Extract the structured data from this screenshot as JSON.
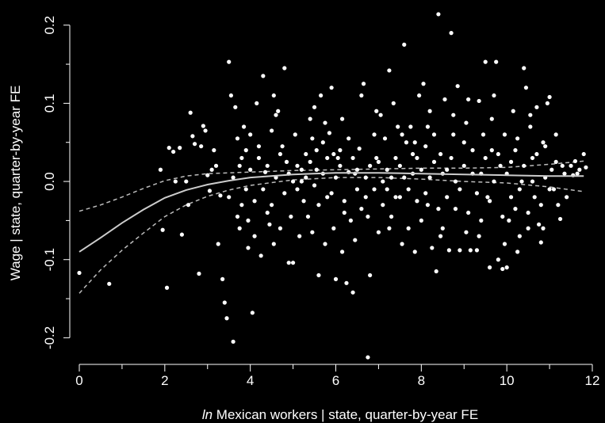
{
  "chart_data": {
    "type": "scatter",
    "title": "",
    "xlabel_italic": "ln",
    "xlabel_rest": " Mexican workers | state, quarter-by-year FE",
    "ylabel": "Wage | state, quarter-by-year FE",
    "xlim": [
      0,
      12
    ],
    "ylim": [
      -0.23,
      0.22
    ],
    "x_ticks": [
      0,
      2,
      4,
      6,
      8,
      10,
      12
    ],
    "x_tick_labels": [
      "0",
      "2",
      "4",
      "6",
      "8",
      "10",
      "12"
    ],
    "x_minor_ticks": [
      1,
      3,
      5,
      7,
      9,
      11
    ],
    "y_ticks": [
      -0.2,
      -0.1,
      0.0,
      0.1,
      0.2
    ],
    "y_tick_labels": [
      "-0.2",
      "-0.1",
      "0.0",
      "0.1",
      "0.2"
    ],
    "colors": {
      "background": "#000000",
      "points": "#ffffff",
      "fit": "#cccccc",
      "band": "#bbbbbb"
    },
    "fit": {
      "x": [
        0,
        0.5,
        1,
        1.5,
        2,
        2.5,
        3,
        3.5,
        4,
        5,
        6,
        7,
        8,
        9,
        10,
        11,
        11.8
      ],
      "y": [
        -0.09,
        -0.072,
        -0.053,
        -0.036,
        -0.021,
        -0.011,
        -0.004,
        0.001,
        0.005,
        0.009,
        0.011,
        0.011,
        0.01,
        0.009,
        0.008,
        0.007,
        0.007
      ]
    },
    "ci_upper": {
      "x": [
        0,
        0.5,
        1,
        1.5,
        2,
        2.5,
        3,
        3.5,
        4,
        5,
        6,
        7,
        8,
        9,
        10,
        11,
        11.8
      ],
      "y": [
        -0.038,
        -0.03,
        -0.02,
        -0.009,
        0.001,
        0.007,
        0.01,
        0.011,
        0.012,
        0.014,
        0.015,
        0.016,
        0.017,
        0.017,
        0.018,
        0.022,
        0.026
      ]
    },
    "ci_lower": {
      "x": [
        0,
        0.5,
        1,
        1.5,
        2,
        2.5,
        3,
        3.5,
        4,
        5,
        6,
        7,
        8,
        9,
        10,
        11,
        11.8
      ],
      "y": [
        -0.143,
        -0.113,
        -0.088,
        -0.066,
        -0.045,
        -0.03,
        -0.019,
        -0.011,
        -0.005,
        0.002,
        0.005,
        0.005,
        0.003,
        0.0,
        -0.002,
        -0.007,
        -0.013
      ]
    },
    "points": [
      [
        0.0,
        -0.117
      ],
      [
        0.7,
        -0.131
      ],
      [
        2.05,
        -0.136
      ],
      [
        2.1,
        0.043
      ],
      [
        2.2,
        0.038
      ],
      [
        2.35,
        0.043
      ],
      [
        2.4,
        -0.068
      ],
      [
        2.5,
        0.0
      ],
      [
        2.6,
        0.088
      ],
      [
        2.65,
        0.058
      ],
      [
        2.7,
        0.048
      ],
      [
        2.8,
        -0.118
      ],
      [
        2.85,
        0.045
      ],
      [
        2.9,
        0.071
      ],
      [
        2.95,
        0.065
      ],
      [
        3.0,
        0.008
      ],
      [
        3.05,
        -0.012
      ],
      [
        3.1,
        0.015
      ],
      [
        3.2,
        0.02
      ],
      [
        3.3,
        -0.018
      ],
      [
        3.35,
        -0.125
      ],
      [
        3.4,
        -0.155
      ],
      [
        3.45,
        -0.175
      ],
      [
        3.5,
        0.153
      ],
      [
        3.55,
        0.11
      ],
      [
        3.6,
        -0.205
      ],
      [
        3.65,
        0.095
      ],
      [
        3.7,
        0.055
      ],
      [
        3.75,
        0.02
      ],
      [
        3.8,
        -0.03
      ],
      [
        3.85,
        0.07
      ],
      [
        3.9,
        0.04
      ],
      [
        3.95,
        -0.05
      ],
      [
        4.0,
        0.06
      ],
      [
        4.05,
        -0.168
      ],
      [
        4.1,
        -0.07
      ],
      [
        4.15,
        0.1
      ],
      [
        4.2,
        0.03
      ],
      [
        4.3,
        0.135
      ],
      [
        4.35,
        0.012
      ],
      [
        4.4,
        -0.04
      ],
      [
        4.5,
        0.065
      ],
      [
        4.55,
        0.11
      ],
      [
        4.6,
        0.085
      ],
      [
        4.7,
        -0.06
      ],
      [
        4.75,
        0.045
      ],
      [
        4.8,
        0.145
      ],
      [
        4.85,
        0.025
      ],
      [
        4.9,
        -0.104
      ],
      [
        5.0,
        -0.104
      ],
      [
        5.05,
        0.06
      ],
      [
        5.1,
        0.02
      ],
      [
        5.2,
        0.0
      ],
      [
        5.3,
        0.035
      ],
      [
        5.35,
        -0.045
      ],
      [
        5.4,
        0.08
      ],
      [
        5.45,
        -0.065
      ],
      [
        5.5,
        0.095
      ],
      [
        5.55,
        0.015
      ],
      [
        5.6,
        -0.12
      ],
      [
        5.65,
        0.11
      ],
      [
        5.7,
        0.05
      ],
      [
        5.75,
        0.075
      ],
      [
        5.8,
        -0.02
      ],
      [
        5.85,
        0.062
      ],
      [
        5.9,
        0.12
      ],
      [
        5.95,
        0.035
      ],
      [
        6.0,
        -0.125
      ],
      [
        6.05,
        0.03
      ],
      [
        6.1,
        0.04
      ],
      [
        6.15,
        0.08
      ],
      [
        6.2,
        -0.04
      ],
      [
        6.25,
        -0.13
      ],
      [
        6.3,
        0.055
      ],
      [
        6.4,
        -0.142
      ],
      [
        6.45,
        0.01
      ],
      [
        6.5,
        -0.01
      ],
      [
        6.55,
        0.042
      ],
      [
        6.6,
        0.11
      ],
      [
        6.65,
        0.125
      ],
      [
        6.7,
        -0.02
      ],
      [
        6.75,
        -0.225
      ],
      [
        6.8,
        -0.12
      ],
      [
        6.9,
        0.06
      ],
      [
        6.95,
        0.03
      ],
      [
        7.0,
        -0.065
      ],
      [
        7.05,
        0.085
      ],
      [
        7.1,
        0.0
      ],
      [
        7.15,
        0.055
      ],
      [
        7.2,
        -0.01
      ],
      [
        7.25,
        0.142
      ],
      [
        7.3,
        -0.045
      ],
      [
        7.35,
        0.1
      ],
      [
        7.4,
        0.03
      ],
      [
        7.45,
        0.07
      ],
      [
        7.5,
        -0.02
      ],
      [
        7.55,
        -0.08
      ],
      [
        7.6,
        0.175
      ],
      [
        7.65,
        0.05
      ],
      [
        7.7,
        -0.06
      ],
      [
        7.75,
        0.07
      ],
      [
        7.8,
        0.01
      ],
      [
        7.85,
        -0.09
      ],
      [
        7.9,
        0.03
      ],
      [
        7.95,
        0.11
      ],
      [
        8.0,
        -0.05
      ],
      [
        8.05,
        0.125
      ],
      [
        8.1,
        0.045
      ],
      [
        8.15,
        -0.03
      ],
      [
        8.2,
        0.09
      ],
      [
        8.25,
        -0.085
      ],
      [
        8.3,
        0.06
      ],
      [
        8.35,
        -0.115
      ],
      [
        8.4,
        0.214
      ],
      [
        8.45,
        0.035
      ],
      [
        8.5,
        -0.06
      ],
      [
        8.55,
        0.105
      ],
      [
        8.6,
        0.015
      ],
      [
        8.65,
        -0.088
      ],
      [
        8.7,
        0.19
      ],
      [
        8.75,
        0.06
      ],
      [
        8.8,
        -0.035
      ],
      [
        8.85,
        0.122
      ],
      [
        8.9,
        -0.088
      ],
      [
        9.0,
        0.05
      ],
      [
        9.05,
        -0.065
      ],
      [
        9.1,
        0.105
      ],
      [
        9.15,
        -0.088
      ],
      [
        9.2,
        0.01
      ],
      [
        9.3,
        -0.088
      ],
      [
        9.35,
        0.103
      ],
      [
        9.4,
        -0.05
      ],
      [
        9.45,
        0.06
      ],
      [
        9.5,
        0.153
      ],
      [
        9.55,
        -0.02
      ],
      [
        9.6,
        -0.11
      ],
      [
        9.65,
        0.04
      ],
      [
        9.7,
        0.11
      ],
      [
        9.75,
        0.153
      ],
      [
        9.8,
        -0.1
      ],
      [
        9.85,
        0.02
      ],
      [
        9.9,
        -0.112
      ],
      [
        9.95,
        0.06
      ],
      [
        10.0,
        -0.11
      ],
      [
        10.05,
        -0.05
      ],
      [
        10.1,
        0.025
      ],
      [
        10.15,
        0.09
      ],
      [
        10.2,
        -0.035
      ],
      [
        10.25,
        0.055
      ],
      [
        10.3,
        -0.07
      ],
      [
        10.35,
        0.0
      ],
      [
        10.4,
        0.145
      ],
      [
        10.45,
        0.12
      ],
      [
        10.5,
        -0.04
      ],
      [
        10.55,
        0.07
      ],
      [
        10.6,
        0.03
      ],
      [
        10.65,
        -0.02
      ],
      [
        10.7,
        0.095
      ],
      [
        10.75,
        -0.055
      ],
      [
        10.8,
        -0.078
      ],
      [
        10.85,
        0.05
      ],
      [
        10.9,
        0.005
      ],
      [
        10.95,
        0.1
      ],
      [
        11.0,
        0.108
      ],
      [
        11.05,
        0.015
      ],
      [
        11.1,
        -0.01
      ],
      [
        11.15,
        0.025
      ],
      [
        11.2,
        -0.03
      ],
      [
        11.25,
        -0.048
      ],
      [
        11.3,
        0.02
      ],
      [
        11.35,
        0.01
      ],
      [
        11.4,
        -0.02
      ],
      [
        11.5,
        0.02
      ],
      [
        11.55,
        0.008
      ],
      [
        11.6,
        0.026
      ],
      [
        11.65,
        0.01
      ],
      [
        11.7,
        0.015
      ],
      [
        11.8,
        0.035
      ],
      [
        11.85,
        0.018
      ],
      [
        5.0,
        0.0
      ],
      [
        5.1,
        -0.01
      ],
      [
        5.2,
        0.015
      ],
      [
        5.25,
        -0.025
      ],
      [
        5.3,
        0.005
      ],
      [
        5.4,
        0.025
      ],
      [
        5.5,
        -0.005
      ],
      [
        5.55,
        0.04
      ],
      [
        5.6,
        -0.03
      ],
      [
        5.7,
        0.01
      ],
      [
        5.8,
        0.03
      ],
      [
        5.9,
        -0.015
      ],
      [
        6.0,
        0.005
      ],
      [
        6.1,
        0.02
      ],
      [
        6.2,
        -0.025
      ],
      [
        6.3,
        0.012
      ],
      [
        6.35,
        -0.05
      ],
      [
        6.4,
        0.03
      ],
      [
        6.5,
        0.015
      ],
      [
        6.6,
        -0.035
      ],
      [
        6.7,
        0.005
      ],
      [
        6.8,
        0.02
      ],
      [
        6.9,
        -0.01
      ],
      [
        7.0,
        0.025
      ],
      [
        7.1,
        -0.03
      ],
      [
        7.2,
        0.015
      ],
      [
        7.3,
        0.005
      ],
      [
        7.4,
        -0.02
      ],
      [
        7.5,
        0.02
      ],
      [
        7.6,
        0.005
      ],
      [
        7.7,
        -0.01
      ],
      [
        7.8,
        0.035
      ],
      [
        7.9,
        -0.025
      ],
      [
        8.0,
        0.015
      ],
      [
        8.1,
        -0.015
      ],
      [
        8.2,
        0.005
      ],
      [
        8.3,
        0.025
      ],
      [
        8.4,
        -0.035
      ],
      [
        8.5,
        0.01
      ],
      [
        8.6,
        -0.02
      ],
      [
        8.7,
        0.03
      ],
      [
        8.8,
        0.0
      ],
      [
        8.9,
        -0.01
      ],
      [
        9.0,
        0.02
      ],
      [
        9.1,
        -0.04
      ],
      [
        9.2,
        0.04
      ],
      [
        9.3,
        -0.015
      ],
      [
        9.4,
        0.01
      ],
      [
        9.5,
        0.03
      ],
      [
        9.6,
        -0.025
      ],
      [
        9.7,
        0.0
      ],
      [
        9.8,
        0.035
      ],
      [
        9.9,
        -0.045
      ],
      [
        10.0,
        0.01
      ],
      [
        10.1,
        -0.02
      ],
      [
        10.2,
        0.04
      ],
      [
        10.3,
        -0.01
      ],
      [
        10.4,
        0.02
      ],
      [
        10.5,
        -0.06
      ],
      [
        10.6,
        0.0
      ],
      [
        10.7,
        0.035
      ],
      [
        10.8,
        -0.03
      ],
      [
        10.9,
        0.045
      ],
      [
        11.0,
        -0.01
      ],
      [
        3.5,
        -0.02
      ],
      [
        3.6,
        0.005
      ],
      [
        3.7,
        -0.045
      ],
      [
        3.8,
        0.03
      ],
      [
        3.9,
        -0.01
      ],
      [
        4.0,
        0.015
      ],
      [
        4.1,
        -0.025
      ],
      [
        4.2,
        0.045
      ],
      [
        4.3,
        -0.01
      ],
      [
        4.4,
        0.02
      ],
      [
        4.5,
        -0.03
      ],
      [
        4.6,
        0.005
      ],
      [
        4.7,
        0.035
      ],
      [
        4.8,
        -0.015
      ],
      [
        4.9,
        0.01
      ],
      [
        4.45,
        -0.055
      ],
      [
        4.65,
        0.09
      ],
      [
        4.25,
        -0.095
      ],
      [
        3.95,
        -0.085
      ],
      [
        3.75,
        -0.06
      ],
      [
        4.55,
        -0.08
      ],
      [
        4.95,
        -0.045
      ],
      [
        5.15,
        -0.07
      ],
      [
        5.45,
        0.055
      ],
      [
        5.75,
        -0.08
      ],
      [
        5.95,
        -0.06
      ],
      [
        6.15,
        -0.09
      ],
      [
        6.45,
        -0.075
      ],
      [
        6.75,
        -0.045
      ],
      [
        6.95,
        0.09
      ],
      [
        7.25,
        -0.06
      ],
      [
        7.55,
        0.06
      ],
      [
        7.85,
        0.05
      ],
      [
        8.15,
        0.07
      ],
      [
        8.45,
        -0.07
      ],
      [
        8.75,
        0.085
      ],
      [
        9.05,
        0.075
      ],
      [
        9.35,
        -0.07
      ],
      [
        9.65,
        0.08
      ],
      [
        9.95,
        -0.08
      ],
      [
        10.25,
        -0.09
      ],
      [
        10.55,
        0.085
      ],
      [
        10.85,
        -0.06
      ],
      [
        11.15,
        0.06
      ],
      [
        2.55,
        -0.03
      ],
      [
        2.25,
        0.0
      ],
      [
        1.9,
        0.015
      ],
      [
        1.95,
        -0.062
      ],
      [
        3.25,
        -0.08
      ],
      [
        3.15,
        0.04
      ]
    ]
  }
}
